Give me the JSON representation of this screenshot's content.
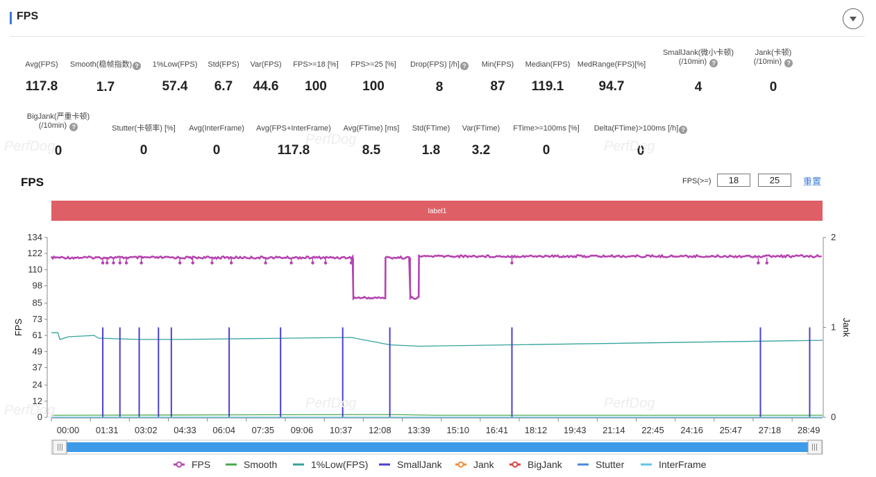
{
  "header": {
    "title": "FPS"
  },
  "metrics_row1": [
    {
      "label": "Avg(FPS)",
      "value": "117.8",
      "help": false,
      "x": 60
    },
    {
      "label": "Smooth(稳帧指数)",
      "value": "1.7",
      "help": true,
      "x": 152
    },
    {
      "label": "1%Low(FPS)",
      "value": "57.4",
      "help": false,
      "x": 252
    },
    {
      "label": "Std(FPS)",
      "value": "6.7",
      "help": false,
      "x": 322
    },
    {
      "label": "Var(FPS)",
      "value": "44.6",
      "help": false,
      "x": 383
    },
    {
      "label": "FPS>=18 [%]",
      "value": "100",
      "help": false,
      "x": 455
    },
    {
      "label": "FPS>=25 [%]",
      "value": "100",
      "help": false,
      "x": 538
    },
    {
      "label": "Drop(FPS) [/h]",
      "value": "8",
      "help": true,
      "x": 633
    },
    {
      "label": "Min(FPS)",
      "value": "87",
      "help": false,
      "x": 717
    },
    {
      "label": "Median(FPS)",
      "value": "119.1",
      "help": false,
      "x": 789
    },
    {
      "label": "MedRange(FPS)[%]",
      "value": "94.7",
      "help": false,
      "x": 881
    }
  ],
  "metrics_row1_twoline": [
    {
      "label1": "SmallJank(微小卡顿)",
      "label2": "(/10min)",
      "value": "4",
      "x": 1006
    },
    {
      "label1": "Jank(卡顿)",
      "label2": "(/10min)",
      "value": "0",
      "x": 1114
    }
  ],
  "metrics_row2": [
    {
      "label": "Stutter(卡顿率) [%]",
      "value": "0",
      "help": false,
      "x": 207
    },
    {
      "label": "Avg(InterFrame)",
      "value": "0",
      "help": false,
      "x": 312
    },
    {
      "label": "Avg(FPS+InterFrame)",
      "value": "117.8",
      "help": false,
      "x": 423
    },
    {
      "label": "Avg(FTime) [ms]",
      "value": "8.5",
      "help": false,
      "x": 535
    },
    {
      "label": "Std(FTime)",
      "value": "1.8",
      "help": false,
      "x": 621
    },
    {
      "label": "Var(FTime)",
      "value": "3.2",
      "help": false,
      "x": 693
    },
    {
      "label": "FTime>=100ms [%]",
      "value": "0",
      "help": false,
      "x": 787
    },
    {
      "label": "Delta(FTime)>100ms [/h]",
      "value": "0",
      "help": true,
      "x": 923
    }
  ],
  "metrics_row2_twoline": [
    {
      "label1": "BigJank(严重卡顿)",
      "label2": "(/10min)",
      "value": "0",
      "x": 84
    }
  ],
  "watermark": "PerfDog",
  "chart_header": {
    "title": "FPS",
    "threshold_label": "FPS(>=)",
    "threshold_1": "18",
    "threshold_2": "25",
    "reset_label": "重置"
  },
  "label_band": "label1",
  "chart_data": {
    "type": "line",
    "x_ticks": [
      "00:00",
      "01:31",
      "03:02",
      "04:33",
      "06:04",
      "07:35",
      "09:06",
      "10:37",
      "12:08",
      "13:39",
      "15:10",
      "16:41",
      "18:12",
      "19:43",
      "21:14",
      "22:45",
      "24:16",
      "25:47",
      "27:18",
      "28:49"
    ],
    "x_range_seconds": [
      0,
      1800
    ],
    "ylabel": "FPS",
    "ylabel_right": "Jank",
    "y_ticks": [
      0,
      12,
      24,
      37,
      49,
      61,
      73,
      85,
      98,
      110,
      122,
      134
    ],
    "ylim": [
      0,
      134
    ],
    "y_right_ticks": [
      0,
      1,
      2
    ],
    "y_right_lim": [
      0,
      2
    ],
    "series": [
      {
        "name": "FPS",
        "color": "#b543b0",
        "segments": [
          {
            "x_start": 0,
            "x_end": 705,
            "value": 119
          },
          {
            "x_start": 705,
            "x_end": 780,
            "value": 89
          },
          {
            "x_start": 780,
            "x_end": 838,
            "value": 119
          },
          {
            "x_start": 838,
            "x_end": 858,
            "value": 89
          },
          {
            "x_start": 858,
            "x_end": 1800,
            "value": 120
          }
        ],
        "dips": [
          120,
          130,
          145,
          160,
          175,
          210,
          300,
          330,
          375,
          420,
          500,
          560,
          610,
          640,
          700,
          1075,
          1650,
          1670
        ]
      },
      {
        "name": "Smooth",
        "color": "#4aa84a",
        "points": [
          [
            0,
            1.5
          ],
          [
            700,
            2
          ],
          [
            800,
            2
          ],
          [
            900,
            1.5
          ],
          [
            1800,
            1.5
          ]
        ]
      },
      {
        "name": "1%Low(FPS)",
        "color": "#33a29b",
        "points": [
          [
            0,
            63
          ],
          [
            15,
            63
          ],
          [
            20,
            58
          ],
          [
            40,
            60
          ],
          [
            100,
            61
          ],
          [
            110,
            59
          ],
          [
            200,
            58
          ],
          [
            300,
            58
          ],
          [
            700,
            59.5
          ],
          [
            790,
            54
          ],
          [
            860,
            53
          ],
          [
            1800,
            57.4
          ]
        ]
      },
      {
        "name": "SmallJank",
        "color": "#4a3fd0",
        "right_axis": true,
        "spikes": [
          120,
          160,
          205,
          250,
          280,
          415,
          535,
          680,
          790,
          1075,
          1655,
          1770
        ]
      },
      {
        "name": "Jank",
        "color": "#f28c38",
        "right_axis": true,
        "spikes": []
      },
      {
        "name": "BigJank",
        "color": "#d9443f",
        "right_axis": true,
        "spikes": []
      },
      {
        "name": "Stutter",
        "color": "#4a86e0",
        "points": [
          [
            0,
            0
          ],
          [
            1800,
            0
          ]
        ]
      },
      {
        "name": "InterFrame",
        "color": "#61c6e0",
        "points": [
          [
            0,
            0
          ],
          [
            1800,
            0
          ]
        ]
      }
    ]
  },
  "legend": [
    {
      "name": "FPS",
      "color": "#b543b0",
      "marker": "dot-line",
      "x": 250
    },
    {
      "name": "Smooth",
      "color": "#4aa84a",
      "marker": "line",
      "x": 325
    },
    {
      "name": "1%Low(FPS)",
      "color": "#33a29b",
      "marker": "line",
      "x": 422
    },
    {
      "name": "SmallJank",
      "color": "#4a3fd0",
      "marker": "line",
      "x": 546
    },
    {
      "name": "Jank",
      "color": "#f28c38",
      "marker": "dot-line",
      "x": 656
    },
    {
      "name": "BigJank",
      "color": "#d9443f",
      "marker": "dot-line",
      "x": 734
    },
    {
      "name": "Stutter",
      "color": "#4a86e0",
      "marker": "line",
      "x": 832
    },
    {
      "name": "InterFrame",
      "color": "#61c6e0",
      "marker": "line",
      "x": 923
    }
  ]
}
